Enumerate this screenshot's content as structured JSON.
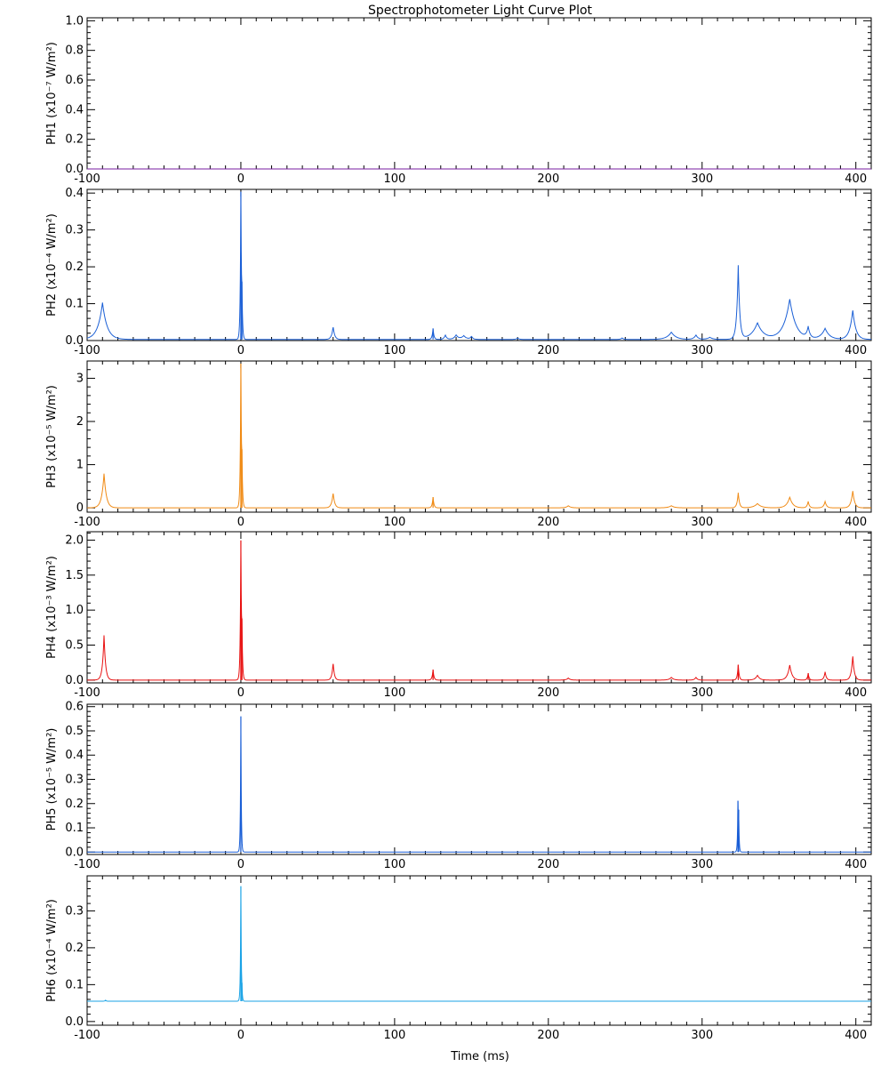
{
  "title": "Spectrophotometer Light Curve Plot",
  "xlabel": "Time (ms)",
  "chart_data": [
    {
      "type": "line",
      "id": "PH1",
      "ylabel": "PH1   (x10⁻⁷ W/m²)",
      "ylabel_channel": "PH1",
      "ylabel_unit": "(x10⁻⁷ W/m²)",
      "xlim": [
        -100,
        410
      ],
      "ylim": [
        0,
        1.02
      ],
      "xticks": [
        -100,
        0,
        100,
        200,
        300,
        400
      ],
      "yticks": [
        0.0,
        0.2,
        0.4,
        0.6,
        0.8,
        1.0
      ],
      "ytick_labels": [
        "0.0",
        "0.2",
        "0.4",
        "0.6",
        "0.8",
        "1.0"
      ],
      "color": "#7a1ea0",
      "baseline": 0.0,
      "peaks": []
    },
    {
      "type": "line",
      "id": "PH2",
      "ylabel": "PH2   (x10⁻⁴ W/m²)",
      "ylabel_channel": "PH2",
      "ylabel_unit": "(x10⁻⁴ W/m²)",
      "xlim": [
        -100,
        410
      ],
      "ylim": [
        0,
        0.41
      ],
      "xticks": [
        -100,
        0,
        100,
        200,
        300,
        400
      ],
      "yticks": [
        0.0,
        0.1,
        0.2,
        0.3,
        0.4
      ],
      "ytick_labels": [
        "0.0",
        "0.1",
        "0.2",
        "0.3",
        "0.4"
      ],
      "color": "#1a5fd6",
      "baseline": 0.003,
      "peaks": [
        [
          -90,
          0.1,
          3
        ],
        [
          0,
          0.385,
          0.4
        ],
        [
          0.7,
          0.09,
          0.4
        ],
        [
          60,
          0.035,
          1
        ],
        [
          125,
          0.03,
          0.6
        ],
        [
          133,
          0.012,
          1
        ],
        [
          140,
          0.012,
          1.5
        ],
        [
          145,
          0.01,
          2
        ],
        [
          150,
          0.008,
          1
        ],
        [
          180,
          0.004,
          1
        ],
        [
          248,
          0.004,
          1
        ],
        [
          280,
          0.02,
          3
        ],
        [
          296,
          0.012,
          1.5
        ],
        [
          305,
          0.006,
          2
        ],
        [
          323.5,
          0.2,
          1
        ],
        [
          336,
          0.045,
          4
        ],
        [
          357,
          0.11,
          4
        ],
        [
          369,
          0.03,
          1.2
        ],
        [
          380,
          0.03,
          3
        ],
        [
          398,
          0.08,
          2
        ]
      ]
    },
    {
      "type": "line",
      "id": "PH3",
      "ylabel": "PH3   (x10⁻⁵ W/m²)",
      "ylabel_channel": "PH3",
      "ylabel_unit": "(x10⁻⁵ W/m²)",
      "xlim": [
        -100,
        410
      ],
      "ylim": [
        -0.1,
        3.4
      ],
      "xticks": [
        -100,
        0,
        100,
        200,
        300,
        400
      ],
      "yticks": [
        0,
        1,
        2,
        3
      ],
      "ytick_labels": [
        "0",
        "1",
        "2",
        "3"
      ],
      "color": "#f08a14",
      "baseline": 0.0,
      "peaks": [
        [
          -89,
          0.8,
          1.5
        ],
        [
          0,
          3.2,
          0.4
        ],
        [
          0.7,
          0.8,
          0.4
        ],
        [
          60,
          0.35,
          1
        ],
        [
          125,
          0.25,
          0.6
        ],
        [
          213,
          0.05,
          1.5
        ],
        [
          280,
          0.05,
          2
        ],
        [
          323.5,
          0.35,
          0.8
        ],
        [
          336,
          0.1,
          2.5
        ],
        [
          357,
          0.25,
          2
        ],
        [
          369,
          0.15,
          0.8
        ],
        [
          380,
          0.15,
          1
        ],
        [
          398,
          0.4,
          1.2
        ]
      ]
    },
    {
      "type": "line",
      "id": "PH4",
      "ylabel": "PH4   (x10⁻³ W/m²)",
      "ylabel_channel": "PH4",
      "ylabel_unit": "(x10⁻³ W/m²)",
      "xlim": [
        -100,
        410
      ],
      "ylim": [
        -0.04,
        2.12
      ],
      "xticks": [
        -100,
        0,
        100,
        200,
        300,
        400
      ],
      "yticks": [
        0.0,
        0.5,
        1.0,
        1.5,
        2.0
      ],
      "ytick_labels": [
        "0.0",
        "0.5",
        "1.0",
        "1.5",
        "2.0"
      ],
      "color": "#e81010",
      "baseline": 0.0,
      "peaks": [
        [
          -89,
          0.65,
          1
        ],
        [
          0,
          1.9,
          0.4
        ],
        [
          0.7,
          0.55,
          0.4
        ],
        [
          60,
          0.25,
          0.8
        ],
        [
          125,
          0.15,
          0.6
        ],
        [
          213,
          0.03,
          1.2
        ],
        [
          280,
          0.04,
          1.5
        ],
        [
          296,
          0.04,
          1
        ],
        [
          323.5,
          0.22,
          0.6
        ],
        [
          336,
          0.07,
          1.5
        ],
        [
          357,
          0.22,
          1.5
        ],
        [
          369,
          0.1,
          0.6
        ],
        [
          380,
          0.12,
          0.8
        ],
        [
          398,
          0.35,
          1
        ]
      ]
    },
    {
      "type": "line",
      "id": "PH5",
      "ylabel": "PH5   (x10⁻⁵ W/m²)",
      "ylabel_channel": "PH5",
      "ylabel_unit": "(x10⁻⁵ W/m²)",
      "xlim": [
        -100,
        410
      ],
      "ylim": [
        -0.01,
        0.61
      ],
      "xticks": [
        -100,
        0,
        100,
        200,
        300,
        400
      ],
      "yticks": [
        0.0,
        0.1,
        0.2,
        0.3,
        0.4,
        0.5,
        0.6
      ],
      "ytick_labels": [
        "0.0",
        "0.1",
        "0.2",
        "0.3",
        "0.4",
        "0.5",
        "0.6"
      ],
      "color": "#1a5fd6",
      "baseline": 0.0,
      "peaks": [
        [
          0,
          0.56,
          0.3
        ],
        [
          323.3,
          0.185,
          0.3
        ],
        [
          323.8,
          0.14,
          0.3
        ]
      ]
    },
    {
      "type": "line",
      "id": "PH6",
      "ylabel": "PH6   (x10⁻⁴ W/m²)",
      "ylabel_channel": "PH6",
      "ylabel_unit": "(x10⁻⁴ W/m²)",
      "xlim": [
        -100,
        410
      ],
      "ylim": [
        -0.01,
        0.395
      ],
      "xticks": [
        -100,
        0,
        100,
        200,
        300,
        400
      ],
      "yticks": [
        0.0,
        0.1,
        0.2,
        0.3
      ],
      "ytick_labels": [
        "0.0",
        "0.1",
        "0.2",
        "0.3"
      ],
      "color": "#1aa3e6",
      "baseline": 0.055,
      "peaks": [
        [
          -88,
          0.003,
          0.5
        ],
        [
          0,
          0.31,
          0.3
        ],
        [
          0.7,
          0.02,
          0.3
        ]
      ]
    }
  ]
}
